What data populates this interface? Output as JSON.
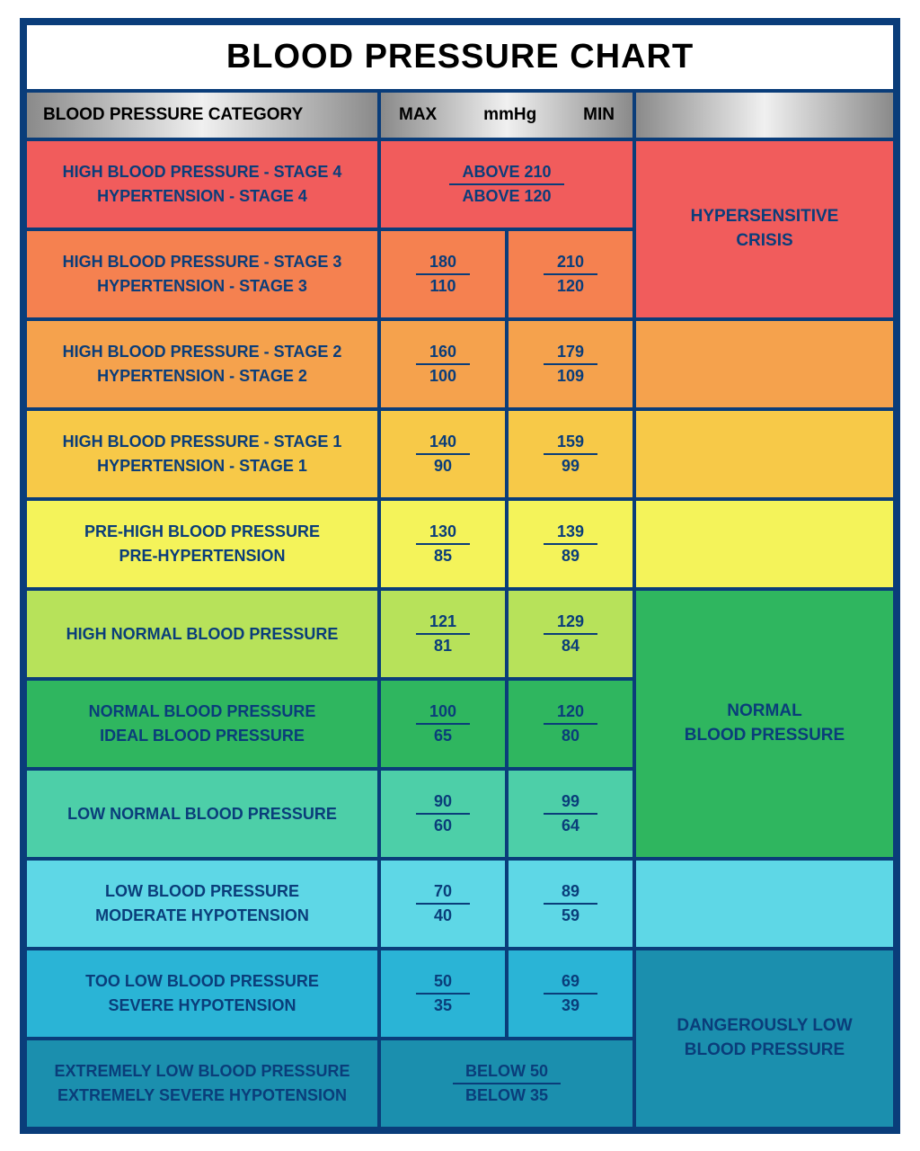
{
  "title": "BLOOD PRESSURE CHART",
  "headers": {
    "category": "BLOOD PRESSURE CATEGORY",
    "max": "MAX",
    "unit": "mmHg",
    "min": "MIN"
  },
  "colors": {
    "border": "#0a3d7a",
    "text": "#0a3d7a",
    "header_grad_dark": "#8a8a8a",
    "header_grad_light": "#f0f0f0"
  },
  "side_labels": {
    "crisis": "HYPERSENSITIVE\nCRISIS",
    "normal": "NORMAL\nBLOOD PRESSURE",
    "danger": "DANGEROUSLY LOW\nBLOOD PRESSURE"
  },
  "rows": [
    {
      "id": "stage4",
      "bg": "#f15c5c",
      "cat1": "HIGH BLOOD PRESSURE - STAGE 4",
      "cat2": "HYPERTENSION - STAGE 4",
      "single": true,
      "top": "ABOVE 210",
      "bot": "ABOVE 120",
      "side_bg": "#f15c5c",
      "side_rowspan": 2,
      "side_key": "crisis"
    },
    {
      "id": "stage3",
      "bg": "#f58150",
      "cat1": "HIGH BLOOD PRESSURE - STAGE 3",
      "cat2": "HYPERTENSION - STAGE 3",
      "left": {
        "top": "180",
        "bot": "110"
      },
      "right": {
        "top": "210",
        "bot": "120"
      }
    },
    {
      "id": "stage2",
      "bg": "#f5a24d",
      "cat1": "HIGH BLOOD PRESSURE - STAGE 2",
      "cat2": "HYPERTENSION - STAGE 2",
      "left": {
        "top": "160",
        "bot": "100"
      },
      "right": {
        "top": "179",
        "bot": "109"
      },
      "side_bg": "#f5a24d",
      "side_rowspan": 1,
      "side_key": null
    },
    {
      "id": "stage1",
      "bg": "#f7c948",
      "cat1": "HIGH BLOOD PRESSURE - STAGE 1",
      "cat2": "HYPERTENSION - STAGE 1",
      "left": {
        "top": "140",
        "bot": "90"
      },
      "right": {
        "top": "159",
        "bot": "99"
      },
      "side_bg": "#f7c948",
      "side_rowspan": 1,
      "side_key": null
    },
    {
      "id": "prehigh",
      "bg": "#f4f35a",
      "cat1": "PRE-HIGH BLOOD PRESSURE",
      "cat2": "PRE-HYPERTENSION",
      "left": {
        "top": "130",
        "bot": "85"
      },
      "right": {
        "top": "139",
        "bot": "89"
      },
      "side_bg": "#f4f35a",
      "side_rowspan": 1,
      "side_key": null
    },
    {
      "id": "highnormal",
      "bg": "#b7e25a",
      "cat1": "HIGH NORMAL BLOOD PRESSURE",
      "cat2": "",
      "left": {
        "top": "121",
        "bot": "81"
      },
      "right": {
        "top": "129",
        "bot": "84"
      },
      "side_bg": "#2fb65f",
      "side_rowspan": 3,
      "side_key": "normal"
    },
    {
      "id": "normal",
      "bg": "#2fb65f",
      "cat1": "NORMAL BLOOD PRESSURE",
      "cat2": "IDEAL BLOOD PRESSURE",
      "left": {
        "top": "100",
        "bot": "65"
      },
      "right": {
        "top": "120",
        "bot": "80"
      }
    },
    {
      "id": "lownormal",
      "bg": "#4dcfa8",
      "cat1": "LOW NORMAL BLOOD PRESSURE",
      "cat2": "",
      "left": {
        "top": "90",
        "bot": "60"
      },
      "right": {
        "top": "99",
        "bot": "64"
      }
    },
    {
      "id": "low",
      "bg": "#5ed7e6",
      "cat1": "LOW BLOOD PRESSURE",
      "cat2": "MODERATE HYPOTENSION",
      "left": {
        "top": "70",
        "bot": "40"
      },
      "right": {
        "top": "89",
        "bot": "59"
      },
      "side_bg": "#5ed7e6",
      "side_rowspan": 1,
      "side_key": null
    },
    {
      "id": "toolow",
      "bg": "#2ab4d6",
      "cat1": "TOO LOW BLOOD PRESSURE",
      "cat2": "SEVERE HYPOTENSION",
      "left": {
        "top": "50",
        "bot": "35"
      },
      "right": {
        "top": "69",
        "bot": "39"
      },
      "side_bg": "#1b8fae",
      "side_rowspan": 2,
      "side_key": "danger"
    },
    {
      "id": "extremelow",
      "bg": "#1b8fae",
      "cat1": "EXTREMELY LOW BLOOD PRESSURE",
      "cat2": "EXTREMELY SEVERE HYPOTENSION",
      "single": true,
      "top": "BELOW 50",
      "bot": "BELOW 35"
    }
  ]
}
